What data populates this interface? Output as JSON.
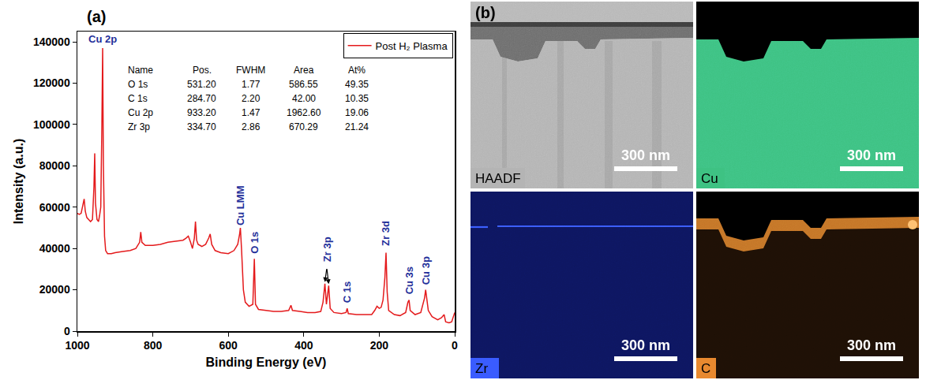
{
  "chart_data": {
    "type": "line",
    "panel_label": "(a)",
    "x_label": "Binding Energy (eV)",
    "y_label": "Intensity (a.u.)",
    "xlim": [
      1000,
      0
    ],
    "ylim": [
      0,
      145000
    ],
    "xticks": [
      1000,
      800,
      600,
      400,
      200,
      0
    ],
    "yticks": [
      0,
      20000,
      40000,
      60000,
      80000,
      100000,
      120000,
      140000
    ],
    "grid": false,
    "legend": "top right",
    "x": [
      1000,
      995,
      990,
      985,
      982,
      979,
      975,
      970,
      965,
      960,
      956,
      954,
      952,
      948,
      944,
      941,
      938,
      935,
      933,
      931,
      928,
      925,
      920,
      910,
      900,
      880,
      860,
      845,
      835,
      832,
      829,
      820,
      800,
      780,
      760,
      740,
      720,
      712,
      706,
      700,
      695,
      690,
      687,
      684,
      680,
      670,
      660,
      652,
      648,
      644,
      635,
      620,
      600,
      585,
      575,
      570,
      568,
      565,
      560,
      555,
      545,
      535,
      531,
      528,
      520,
      500,
      480,
      460,
      440,
      434,
      430,
      410,
      390,
      370,
      355,
      349,
      344,
      340,
      334,
      330,
      320,
      300,
      288,
      285,
      282,
      260,
      240,
      220,
      212,
      206,
      200,
      195,
      190,
      185,
      182,
      179,
      175,
      160,
      145,
      130,
      124,
      121,
      118,
      105,
      90,
      80,
      77,
      74,
      70,
      60,
      45,
      35,
      28,
      24,
      15,
      8,
      4,
      1,
      0
    ],
    "series": [
      {
        "name": "Post H₂ Plasma",
        "color": "#e41a1c",
        "line_style": "solid",
        "values": [
          57000,
          56500,
          57000,
          61000,
          64000,
          58000,
          55000,
          54000,
          53000,
          54000,
          70000,
          86000,
          62000,
          54000,
          53000,
          56000,
          60000,
          100000,
          137000,
          80000,
          46000,
          39000,
          37500,
          37500,
          38000,
          38500,
          39000,
          40000,
          43000,
          48000,
          43000,
          41500,
          41500,
          42000,
          43000,
          43500,
          44000,
          45000,
          46000,
          43000,
          40000,
          45000,
          53000,
          44000,
          42000,
          41000,
          42000,
          45000,
          47000,
          42000,
          39000,
          38000,
          37500,
          39000,
          42000,
          47000,
          50000,
          40000,
          20000,
          14000,
          12000,
          13000,
          35000,
          13000,
          10500,
          10000,
          9500,
          9500,
          10000,
          12500,
          10000,
          9500,
          9000,
          9000,
          9500,
          14000,
          23000,
          13000,
          22000,
          11000,
          9000,
          8500,
          9000,
          11000,
          8500,
          8000,
          8000,
          8000,
          10000,
          12000,
          11000,
          11500,
          15000,
          26000,
          38000,
          19000,
          10000,
          8000,
          7500,
          9000,
          14000,
          15000,
          10000,
          8000,
          9000,
          16000,
          20000,
          16000,
          10000,
          7000,
          5500,
          6500,
          8000,
          4500,
          4000,
          4500,
          7000,
          9000,
          9000
        ]
      }
    ],
    "annotations": [
      {
        "text": "Cu 2p",
        "x": 933
      },
      {
        "text": "Cu LMM",
        "x": 568
      },
      {
        "text": "O 1s",
        "x": 531
      },
      {
        "text": "Zr 3p",
        "x": [
          344,
          334
        ]
      },
      {
        "text": "C 1s",
        "x": 285
      },
      {
        "text": "Zr 3d",
        "x": 182
      },
      {
        "text": "Cu 3s",
        "x": 121
      },
      {
        "text": "Cu 3p",
        "x": 77
      }
    ],
    "table": {
      "columns": [
        "Name",
        "Pos.",
        "FWHM",
        "Area",
        "At%"
      ],
      "rows": [
        [
          "O 1s",
          "531.20",
          "1.77",
          "586.55",
          "49.35"
        ],
        [
          "C 1s",
          "284.70",
          "2.20",
          "42.00",
          "10.35"
        ],
        [
          "Cu 2p",
          "933.20",
          "1.47",
          "1962.60",
          "19.06"
        ],
        [
          "Zr 3p",
          "334.70",
          "2.86",
          "670.29",
          "21.24"
        ]
      ]
    }
  },
  "panel_b": {
    "label": "(b)",
    "tiles": [
      {
        "name": "HAADF",
        "scale_bar": "300 nm",
        "color": "#b4b4b4"
      },
      {
        "name": "Cu",
        "scale_bar": "300 nm",
        "color": "#3ec283"
      },
      {
        "name": "Zr",
        "scale_bar": "300 nm",
        "color": "#3a5cff"
      },
      {
        "name": "C",
        "scale_bar": "300 nm",
        "color": "#e8892f"
      }
    ]
  }
}
